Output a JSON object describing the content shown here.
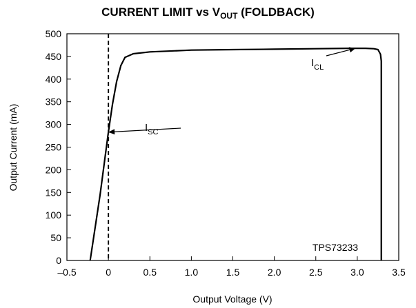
{
  "chart_data": {
    "type": "line",
    "title": {
      "prefix": "CURRENT LIMIT vs V",
      "subscript": "OUT",
      "suffix": " (FOLDBACK)"
    },
    "xlabel": "Output Voltage (V)",
    "ylabel": "Output Current (mA)",
    "xlim": [
      -0.5,
      3.5
    ],
    "ylim": [
      0,
      500
    ],
    "xticks": [
      -0.5,
      0,
      0.5,
      1.0,
      1.5,
      2.0,
      2.5,
      3.0,
      3.5
    ],
    "xtick_labels": [
      "–0.5",
      "0",
      "0.5",
      "1.0",
      "1.5",
      "2.0",
      "2.5",
      "3.0",
      "3.5"
    ],
    "yticks": [
      0,
      50,
      100,
      150,
      200,
      250,
      300,
      350,
      400,
      450,
      500
    ],
    "ytick_labels": [
      "0",
      "50",
      "100",
      "150",
      "200",
      "250",
      "300",
      "350",
      "400",
      "450",
      "500"
    ],
    "grid": false,
    "reference_line": {
      "x": 0,
      "style": "dashed"
    },
    "series": [
      {
        "x": [
          -0.22,
          -0.1,
          0.0,
          0.05,
          0.1,
          0.15,
          0.2,
          0.3,
          0.5,
          1.0,
          1.5,
          2.0,
          2.5,
          2.9,
          3.1,
          3.2,
          3.25,
          3.28,
          3.29,
          3.29
        ],
        "y": [
          0,
          145,
          283,
          345,
          395,
          430,
          448,
          456,
          460,
          464,
          465,
          466,
          467,
          468,
          468,
          467,
          465,
          455,
          440,
          0
        ]
      }
    ],
    "annotations": [
      {
        "main": "I",
        "sub": "SC",
        "point": [
          0.0,
          283
        ]
      },
      {
        "main": "I",
        "sub": "CL",
        "point": [
          2.98,
          468
        ]
      }
    ],
    "inset_label": "TPS73233"
  }
}
